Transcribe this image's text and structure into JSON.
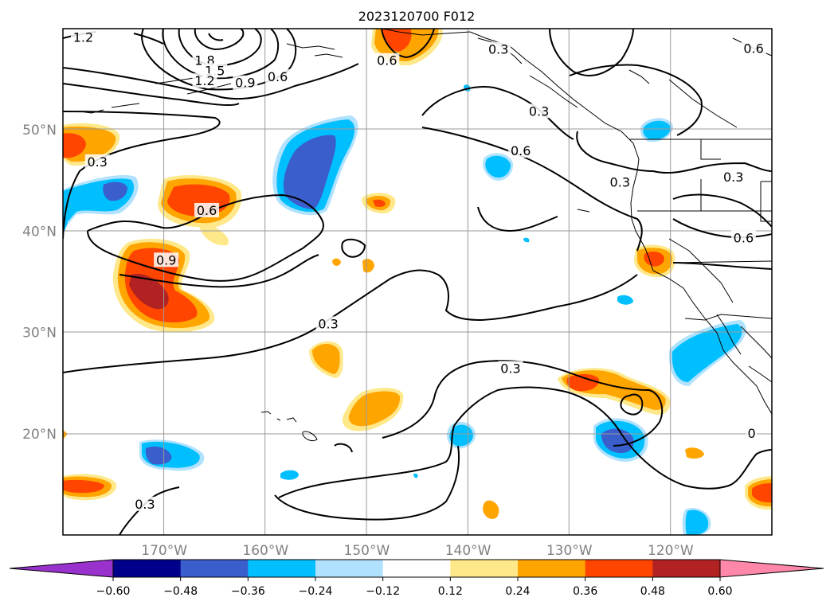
{
  "title": "2023120700 F012",
  "map": {
    "lon_range": [
      -180,
      -110
    ],
    "lat_range": [
      10,
      60
    ],
    "lon_ticks": [
      {
        "lon": -170,
        "label": "170°W"
      },
      {
        "lon": -160,
        "label": "160°W"
      },
      {
        "lon": -150,
        "label": "150°W"
      },
      {
        "lon": -140,
        "label": "140°W"
      },
      {
        "lon": -130,
        "label": "130°W"
      },
      {
        "lon": -120,
        "label": "120°W"
      }
    ],
    "lat_ticks": [
      {
        "lat": 50,
        "label": "50°N"
      },
      {
        "lat": 40,
        "label": "40°N"
      },
      {
        "lat": 30,
        "label": "30°N"
      },
      {
        "lat": 20,
        "label": "20°N"
      }
    ],
    "grid": true
  },
  "colorbar": {
    "orientation": "horizontal",
    "extend": "both",
    "colors": [
      "#9932cc",
      "#00008b",
      "#3a5fcd",
      "#00bfff",
      "#b0e2ff",
      "#ffffff",
      "#ffe88a",
      "#ffa500",
      "#ff4500",
      "#b22222",
      "#ff88aa"
    ],
    "ticks": [
      "−0.60",
      "−0.48",
      "−0.36",
      "−0.24",
      "−0.12",
      "0.12",
      "0.24",
      "0.36",
      "0.48",
      "0.60"
    ]
  },
  "contour_labels": [
    {
      "text": "1.2",
      "lon": -178.0,
      "lat": 59.1
    },
    {
      "text": "1.8",
      "lon": -166.0,
      "lat": 56.8
    },
    {
      "text": "1.5",
      "lon": -165.0,
      "lat": 55.8
    },
    {
      "text": "1.2",
      "lon": -166.0,
      "lat": 54.8
    },
    {
      "text": "0.9",
      "lon": -162.0,
      "lat": 54.6
    },
    {
      "text": "0.6",
      "lon": -158.8,
      "lat": 55.2
    },
    {
      "text": "0.6",
      "lon": -148.0,
      "lat": 56.8
    },
    {
      "text": "0.3",
      "lon": -137.0,
      "lat": 57.9
    },
    {
      "text": "0.6",
      "lon": -111.8,
      "lat": 58.0
    },
    {
      "text": "0.3",
      "lon": -133.0,
      "lat": 51.8
    },
    {
      "text": "0.6",
      "lon": -134.8,
      "lat": 47.9
    },
    {
      "text": "0.3",
      "lon": -125.0,
      "lat": 44.8
    },
    {
      "text": "0.3",
      "lon": -113.8,
      "lat": 45.3
    },
    {
      "text": "0.6",
      "lon": -112.8,
      "lat": 39.3
    },
    {
      "text": "0.3",
      "lon": -176.6,
      "lat": 46.8
    },
    {
      "text": "0.6",
      "lon": -165.8,
      "lat": 42.0
    },
    {
      "text": "0.9",
      "lon": -169.8,
      "lat": 37.1
    },
    {
      "text": "0.3",
      "lon": -153.8,
      "lat": 30.8
    },
    {
      "text": "0.3",
      "lon": -135.8,
      "lat": 26.4
    },
    {
      "text": "0",
      "lon": -112.0,
      "lat": 20.0
    },
    {
      "text": "0.3",
      "lon": -171.9,
      "lat": 13.0
    }
  ]
}
